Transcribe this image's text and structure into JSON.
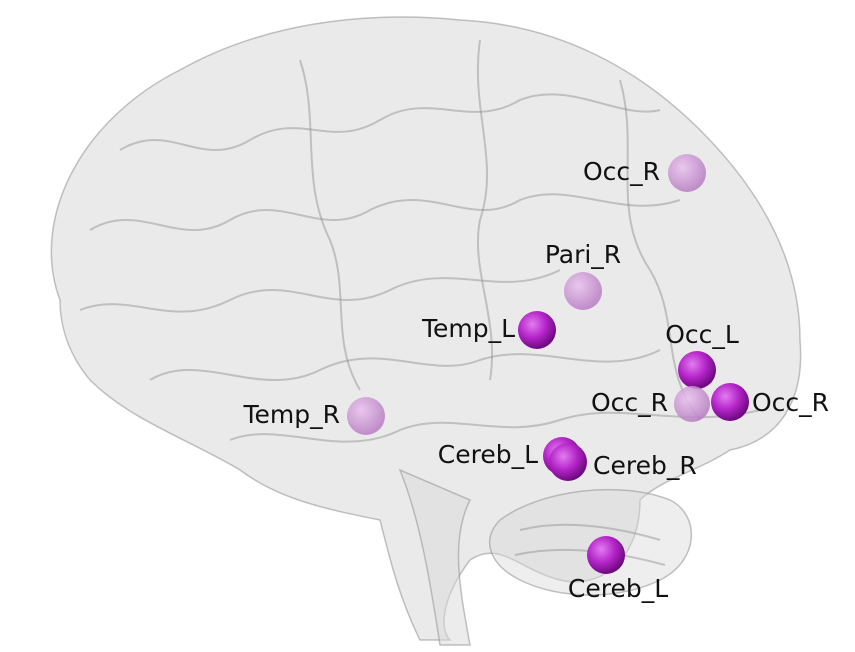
{
  "nodes": [
    {
      "label": "Occ_R"
    },
    {
      "label": "Pari_R"
    },
    {
      "label": "Temp_L"
    },
    {
      "label": "Occ_L"
    },
    {
      "label": "Occ_R"
    },
    {
      "label": "Occ_R"
    },
    {
      "label": "Temp_R"
    },
    {
      "label": "Cereb_L"
    },
    {
      "label": "Cereb_R"
    },
    {
      "label": "Cereb_L"
    }
  ]
}
